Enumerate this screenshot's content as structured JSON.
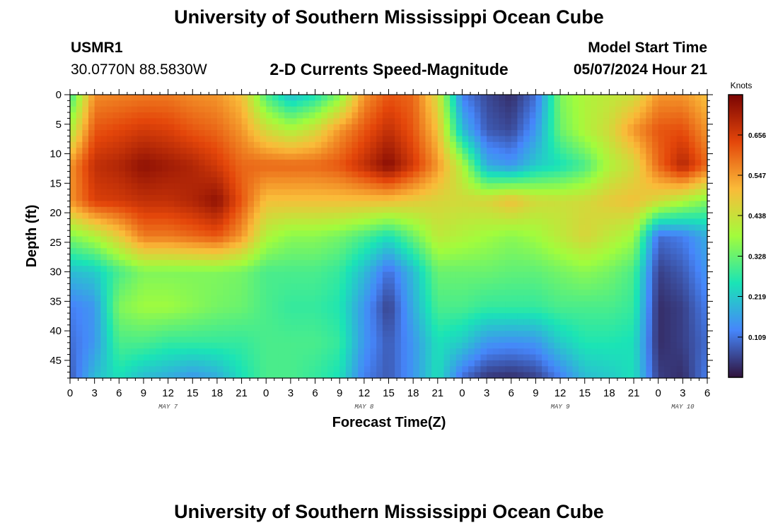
{
  "page": {
    "title_top": "University of Southern Mississippi Ocean Cube",
    "title_bottom": "University of Southern Mississippi Ocean Cube",
    "station_id": "USMR1",
    "station_coords": "30.0770N  88.5830W",
    "plot_title": "2-D Currents Speed-Magnitude",
    "model_start_label": "Model Start Time",
    "model_start_value": "05/07/2024 Hour 21"
  },
  "colors": {
    "colormap": [
      "#30123b",
      "#4686fb",
      "#1ae4b6",
      "#a2fc3c",
      "#fabb39",
      "#e4460a",
      "#7a0403"
    ]
  },
  "chart_data": {
    "type": "heatmap",
    "xlabel": "Forecast Time(Z)",
    "ylabel": "Depth (ft)",
    "x_ticks": [
      "0",
      "3",
      "6",
      "9",
      "12",
      "15",
      "18",
      "21",
      "0",
      "3",
      "6",
      "9",
      "12",
      "15",
      "18",
      "21",
      "0",
      "3",
      "6",
      "9",
      "12",
      "15",
      "18",
      "21",
      "0",
      "3",
      "6"
    ],
    "x_ticks_hours": [
      0,
      3,
      6,
      9,
      12,
      15,
      18,
      21,
      24,
      27,
      30,
      33,
      36,
      39,
      42,
      45,
      48,
      51,
      54,
      57,
      60,
      63,
      66,
      69,
      72,
      75,
      78
    ],
    "day_labels": [
      {
        "text": "MAY 7",
        "hour": 12
      },
      {
        "text": "MAY 8",
        "hour": 36
      },
      {
        "text": "MAY 9",
        "hour": 60
      },
      {
        "text": "MAY 10",
        "hour": 75
      }
    ],
    "xlim": [
      0,
      78
    ],
    "ylim": [
      0,
      48
    ],
    "y_ticks": [
      0,
      5,
      10,
      15,
      20,
      25,
      30,
      35,
      40,
      45
    ],
    "depths": [
      0,
      6,
      12,
      18,
      24,
      30,
      36,
      42,
      48
    ],
    "hours": [
      0,
      3,
      6,
      9,
      12,
      15,
      18,
      21,
      24,
      27,
      30,
      33,
      36,
      39,
      42,
      45,
      48,
      51,
      54,
      57,
      60,
      63,
      66,
      69,
      72,
      75,
      78
    ],
    "values": [
      [
        0.28,
        0.56,
        0.57,
        0.58,
        0.58,
        0.56,
        0.55,
        0.5,
        0.3,
        0.2,
        0.25,
        0.35,
        0.55,
        0.62,
        0.6,
        0.45,
        0.12,
        0.06,
        0.03,
        0.1,
        0.35,
        0.4,
        0.42,
        0.44,
        0.55,
        0.55,
        0.5
      ],
      [
        0.4,
        0.62,
        0.64,
        0.66,
        0.65,
        0.62,
        0.6,
        0.55,
        0.45,
        0.4,
        0.45,
        0.55,
        0.62,
        0.68,
        0.62,
        0.5,
        0.2,
        0.08,
        0.06,
        0.15,
        0.33,
        0.4,
        0.45,
        0.55,
        0.62,
        0.63,
        0.55
      ],
      [
        0.55,
        0.68,
        0.7,
        0.74,
        0.72,
        0.7,
        0.66,
        0.6,
        0.6,
        0.6,
        0.6,
        0.62,
        0.68,
        0.75,
        0.66,
        0.55,
        0.4,
        0.18,
        0.15,
        0.22,
        0.25,
        0.3,
        0.4,
        0.45,
        0.6,
        0.7,
        0.6
      ],
      [
        0.55,
        0.65,
        0.66,
        0.68,
        0.68,
        0.7,
        0.74,
        0.62,
        0.5,
        0.5,
        0.5,
        0.5,
        0.5,
        0.5,
        0.48,
        0.46,
        0.45,
        0.46,
        0.5,
        0.45,
        0.44,
        0.45,
        0.48,
        0.5,
        0.45,
        0.4,
        0.35
      ],
      [
        0.35,
        0.4,
        0.48,
        0.58,
        0.58,
        0.6,
        0.62,
        0.55,
        0.4,
        0.36,
        0.36,
        0.34,
        0.3,
        0.25,
        0.33,
        0.42,
        0.4,
        0.38,
        0.36,
        0.38,
        0.42,
        0.46,
        0.42,
        0.38,
        0.1,
        0.12,
        0.18
      ],
      [
        0.2,
        0.22,
        0.3,
        0.35,
        0.35,
        0.35,
        0.35,
        0.34,
        0.3,
        0.3,
        0.3,
        0.28,
        0.2,
        0.1,
        0.2,
        0.33,
        0.33,
        0.33,
        0.32,
        0.32,
        0.34,
        0.36,
        0.34,
        0.3,
        0.05,
        0.08,
        0.15
      ],
      [
        0.12,
        0.15,
        0.35,
        0.38,
        0.38,
        0.36,
        0.34,
        0.33,
        0.3,
        0.28,
        0.28,
        0.26,
        0.15,
        0.05,
        0.18,
        0.3,
        0.3,
        0.28,
        0.28,
        0.28,
        0.3,
        0.3,
        0.3,
        0.28,
        0.03,
        0.05,
        0.12
      ],
      [
        0.1,
        0.15,
        0.3,
        0.3,
        0.28,
        0.28,
        0.28,
        0.28,
        0.3,
        0.3,
        0.3,
        0.28,
        0.15,
        0.08,
        0.15,
        0.25,
        0.22,
        0.15,
        0.14,
        0.15,
        0.22,
        0.26,
        0.26,
        0.25,
        0.03,
        0.05,
        0.1
      ],
      [
        0.08,
        0.2,
        0.25,
        0.2,
        0.18,
        0.15,
        0.18,
        0.25,
        0.3,
        0.3,
        0.28,
        0.25,
        0.12,
        0.08,
        0.15,
        0.25,
        0.1,
        0.04,
        0.03,
        0.05,
        0.12,
        0.2,
        0.22,
        0.25,
        0.05,
        0.03,
        0.12
      ]
    ],
    "colorbar": {
      "label": "Knots",
      "ticks": [
        "0.109",
        "0.219",
        "0.328",
        "0.438",
        "0.547",
        "0.656"
      ],
      "min": 0.0,
      "max": 0.765
    }
  }
}
